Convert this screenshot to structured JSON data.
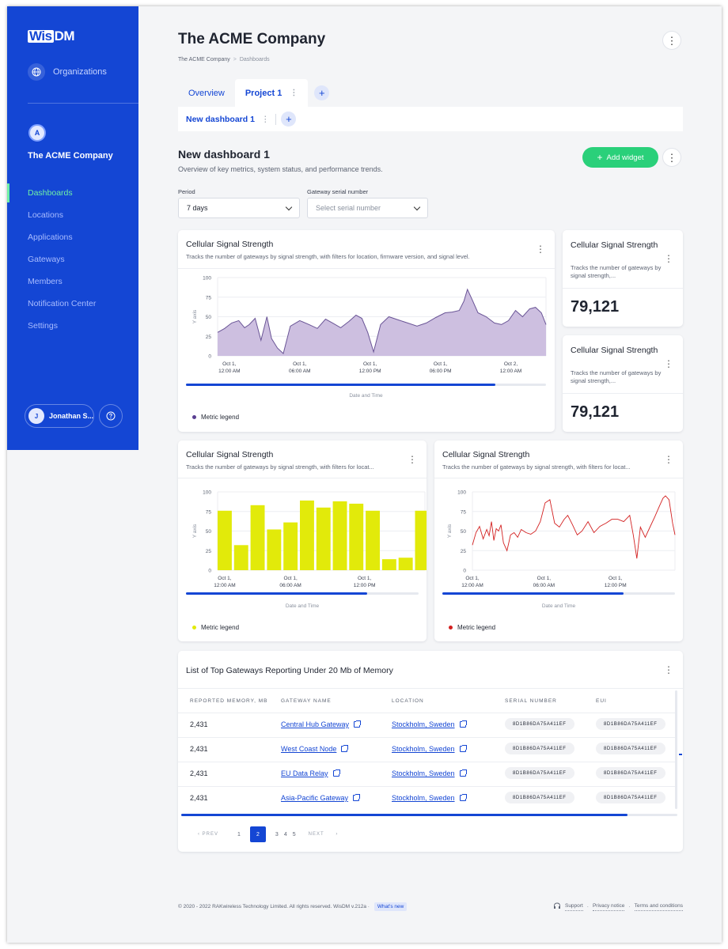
{
  "app": {
    "logo_a": "Wis",
    "logo_b": "DM"
  },
  "sidebar": {
    "organizations_label": "Organizations",
    "company_initial": "A",
    "company_name": "The ACME Company",
    "items": [
      {
        "label": "Dashboards",
        "active": true
      },
      {
        "label": "Locations"
      },
      {
        "label": "Applications"
      },
      {
        "label": "Gateways"
      },
      {
        "label": "Members"
      },
      {
        "label": "Notification Center"
      },
      {
        "label": "Settings"
      }
    ],
    "user_initial": "J",
    "user_name": "Jonathan S..."
  },
  "header": {
    "title": "The ACME Company",
    "breadcrumb": [
      "The ACME Company",
      "Dashboards"
    ],
    "tabs": [
      {
        "label": "Overview"
      },
      {
        "label": "Project 1",
        "active": true
      }
    ],
    "subtab": "New dashboard 1"
  },
  "dashboard": {
    "title": "New dashboard 1",
    "description": "Overview of key metrics, system status, and performance trends.",
    "add_widget_label": "Add widget",
    "period_label": "Period",
    "period_value": "7 days",
    "serial_label": "Gateway serial number",
    "serial_placeholder": "Select serial number"
  },
  "widgets": {
    "area": {
      "title": "Cellular Signal Strength",
      "description": "Tracks the number of gateways by signal strength, with filters for location, firmware version, and signal level.",
      "legend": "Metric legend",
      "x_title": "Date and Time",
      "scroll_fraction": 0.86
    },
    "kpi1": {
      "title": "Cellular Signal Strength",
      "description": "Tracks the number of gateways by signal strength,...",
      "value": "79,121"
    },
    "kpi2": {
      "title": "Cellular Signal Strength",
      "description": "Tracks the number of gateways by signal strength,...",
      "value": "79,121"
    },
    "bar": {
      "title": "Cellular Signal Strength",
      "description": "Tracks the number of gateways by signal strength, with filters for locat...",
      "legend": "Metric legend",
      "x_title": "Date and Time",
      "scroll_fraction": 0.78
    },
    "line": {
      "title": "Cellular Signal Strength",
      "description": "Tracks the number of gateways by signal strength, with filters for locat...",
      "legend": "Metric legend",
      "x_title": "Date and Time",
      "scroll_fraction": 0.78
    }
  },
  "table": {
    "title": "List of Top Gateways Reporting Under 20 Mb of Memory",
    "columns": [
      "REPORTED MEMORY, MB",
      "GATEWAY NAME",
      "LOCATION",
      "SERIAL NUMBER",
      "EUI"
    ],
    "rows": [
      {
        "memory": "2,431",
        "name": "Central Hub Gateway",
        "location": "Stockholm, Sweden",
        "serial": "8D1B86DA75A411EF",
        "eui": "8D1B86DA75A411EF"
      },
      {
        "memory": "2,431",
        "name": "West Coast Node",
        "location": "Stockholm, Sweden",
        "serial": "8D1B86DA75A411EF",
        "eui": "8D1B86DA75A411EF"
      },
      {
        "memory": "2,431",
        "name": "EU Data Relay",
        "location": "Stockholm, Sweden",
        "serial": "8D1B86DA75A411EF",
        "eui": "8D1B86DA75A411EF"
      },
      {
        "memory": "2,431",
        "name": "Asia-Pacific Gateway",
        "location": "Stockholm, Sweden",
        "serial": "8D1B86DA75A411EF",
        "eui": "8D1B86DA75A411EF"
      }
    ],
    "scroll_fraction": 0.9,
    "pager": {
      "prev": "PREV",
      "next": "NEXT",
      "pages": [
        "1",
        "2",
        "3",
        "4",
        "5"
      ],
      "current": "2"
    }
  },
  "footer": {
    "copyright": "© 2020 - 2022 RAKwireless Technology Limited. All rights reserved. WisDM v.212a ·",
    "whats_new": "What's new",
    "support": "Support",
    "privacy": "Privacy notice",
    "terms": "Terms and conditions"
  },
  "colors": {
    "primary": "#1446d4",
    "accent_green": "#2ad07a",
    "area_fill": "#cdbfe0",
    "area_stroke": "#6a5596",
    "bar_fill": "#e2ea0a",
    "line_stroke": "#d32020"
  },
  "chart_data": [
    {
      "type": "area",
      "title": "Cellular Signal Strength",
      "xlabel": "Date and Time",
      "ylabel": "Y axis",
      "ylim": [
        0,
        100
      ],
      "yticks": [
        0,
        25,
        50,
        75,
        100
      ],
      "xticks": [
        {
          "x": 0,
          "l1": "Oct 1,",
          "l2": "12:00 AM"
        },
        {
          "x": 6,
          "l1": "Oct 1,",
          "l2": "06:00 AM"
        },
        {
          "x": 12,
          "l1": "Oct 1,",
          "l2": "12:00 PM"
        },
        {
          "x": 18,
          "l1": "Oct 1,",
          "l2": "06:00 PM"
        },
        {
          "x": 24,
          "l1": "Oct 2,",
          "l2": "12:00 AM"
        }
      ],
      "xrange": [
        -1,
        27
      ],
      "legend": "Metric legend",
      "x": [
        -1,
        -0.4,
        0.2,
        0.8,
        1.3,
        1.7,
        2.2,
        2.7,
        3.2,
        3.6,
        4.1,
        4.6,
        5.2,
        6.0,
        6.8,
        7.5,
        8.2,
        8.8,
        9.5,
        10.2,
        10.8,
        11.3,
        11.8,
        12.3,
        12.9,
        13.6,
        14.4,
        15.2,
        16.0,
        16.8,
        17.6,
        18.4,
        19.0,
        19.6,
        20.0,
        20.3,
        20.7,
        21.2,
        21.9,
        22.6,
        23.2,
        23.8,
        24.4,
        25.0,
        25.6,
        26.1,
        26.6,
        27
      ],
      "y": [
        30,
        35,
        42,
        45,
        36,
        40,
        48,
        20,
        50,
        22,
        10,
        3,
        38,
        45,
        40,
        35,
        47,
        42,
        36,
        44,
        52,
        48,
        30,
        5,
        40,
        50,
        46,
        42,
        38,
        42,
        49,
        55,
        56,
        58,
        70,
        85,
        72,
        55,
        50,
        42,
        40,
        45,
        58,
        50,
        60,
        62,
        55,
        40
      ]
    },
    {
      "type": "bar",
      "title": "Cellular Signal Strength",
      "xlabel": "Date and Time",
      "ylabel": "Y axis",
      "ylim": [
        0,
        100
      ],
      "yticks": [
        0,
        25,
        50,
        75,
        100
      ],
      "xticks": [
        {
          "i": 0,
          "l1": "Oct 1,",
          "l2": "12:00 AM"
        },
        {
          "i": 4,
          "l1": "Oct 1,",
          "l2": "06:00 AM"
        },
        {
          "i": 8.5,
          "l1": "Oct 1,",
          "l2": "12:00 PM"
        }
      ],
      "legend": "Metric legend",
      "values": [
        76,
        32,
        83,
        52,
        61,
        89,
        80,
        88,
        85,
        76,
        14,
        16,
        76
      ]
    },
    {
      "type": "line",
      "title": "Cellular Signal Strength",
      "xlabel": "Date and Time",
      "ylabel": "Y axis",
      "ylim": [
        0,
        100
      ],
      "yticks": [
        0,
        25,
        50,
        75,
        100
      ],
      "xticks": [
        {
          "x": 0,
          "l1": "Oct 1,",
          "l2": "12:00 AM"
        },
        {
          "x": 6,
          "l1": "Oct 1,",
          "l2": "06:00 AM"
        },
        {
          "x": 12,
          "l1": "Oct 1,",
          "l2": "12:00 PM"
        }
      ],
      "xrange": [
        0,
        17
      ],
      "legend": "Metric legend",
      "x": [
        0,
        0.3,
        0.6,
        0.9,
        1.2,
        1.4,
        1.6,
        1.8,
        2.0,
        2.2,
        2.4,
        2.6,
        2.9,
        3.2,
        3.5,
        3.8,
        4.1,
        4.5,
        4.9,
        5.3,
        5.7,
        6.1,
        6.5,
        6.9,
        7.3,
        7.7,
        8.0,
        8.4,
        8.8,
        9.2,
        9.7,
        10.2,
        10.7,
        11.2,
        11.7,
        12.2,
        12.7,
        13.2,
        13.5,
        13.8,
        14.1,
        14.5,
        14.9,
        15.3,
        15.7,
        16.0,
        16.2,
        16.5,
        16.8,
        17
      ],
      "y": [
        32,
        48,
        56,
        40,
        52,
        44,
        62,
        38,
        53,
        50,
        58,
        35,
        25,
        45,
        48,
        42,
        52,
        48,
        46,
        50,
        62,
        86,
        90,
        60,
        55,
        65,
        70,
        58,
        45,
        50,
        62,
        48,
        56,
        60,
        65,
        65,
        62,
        70,
        45,
        15,
        55,
        42,
        55,
        68,
        82,
        92,
        95,
        90,
        60,
        45
      ]
    }
  ]
}
